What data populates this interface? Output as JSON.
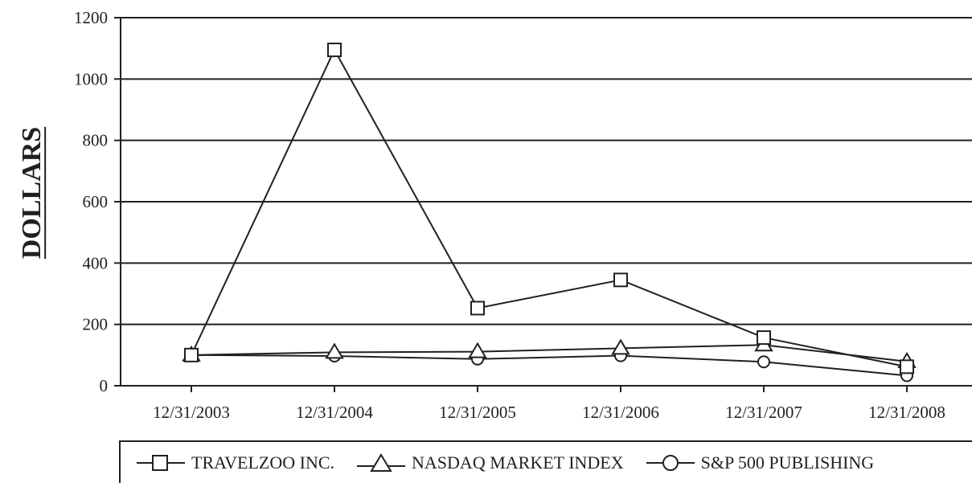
{
  "chart_data": {
    "type": "line",
    "ylabel": "DOLLARS",
    "xlabel": "",
    "categories": [
      "12/31/2003",
      "12/31/2004",
      "12/31/2005",
      "12/31/2006",
      "12/31/2007",
      "12/31/2008"
    ],
    "ylim": [
      0,
      1200
    ],
    "yticks": [
      "0",
      "200",
      "400",
      "600",
      "800",
      "1000",
      "1200"
    ],
    "grid": "horizontal",
    "legend_position": "bottom",
    "series": [
      {
        "name": "TRAVELZOO INC.",
        "marker": "square",
        "values": [
          100,
          1095,
          253,
          345,
          157,
          62
        ]
      },
      {
        "name": "NASDAQ MARKET INDEX",
        "marker": "triangle",
        "values": [
          100,
          109,
          111,
          122,
          133,
          79
        ]
      },
      {
        "name": "S&P 500 PUBLISHING",
        "marker": "circle",
        "values": [
          100,
          97,
          87,
          98,
          78,
          33
        ]
      }
    ],
    "colors": {
      "line": "#231f20",
      "grid": "#231f20",
      "background": "#ffffff"
    }
  }
}
